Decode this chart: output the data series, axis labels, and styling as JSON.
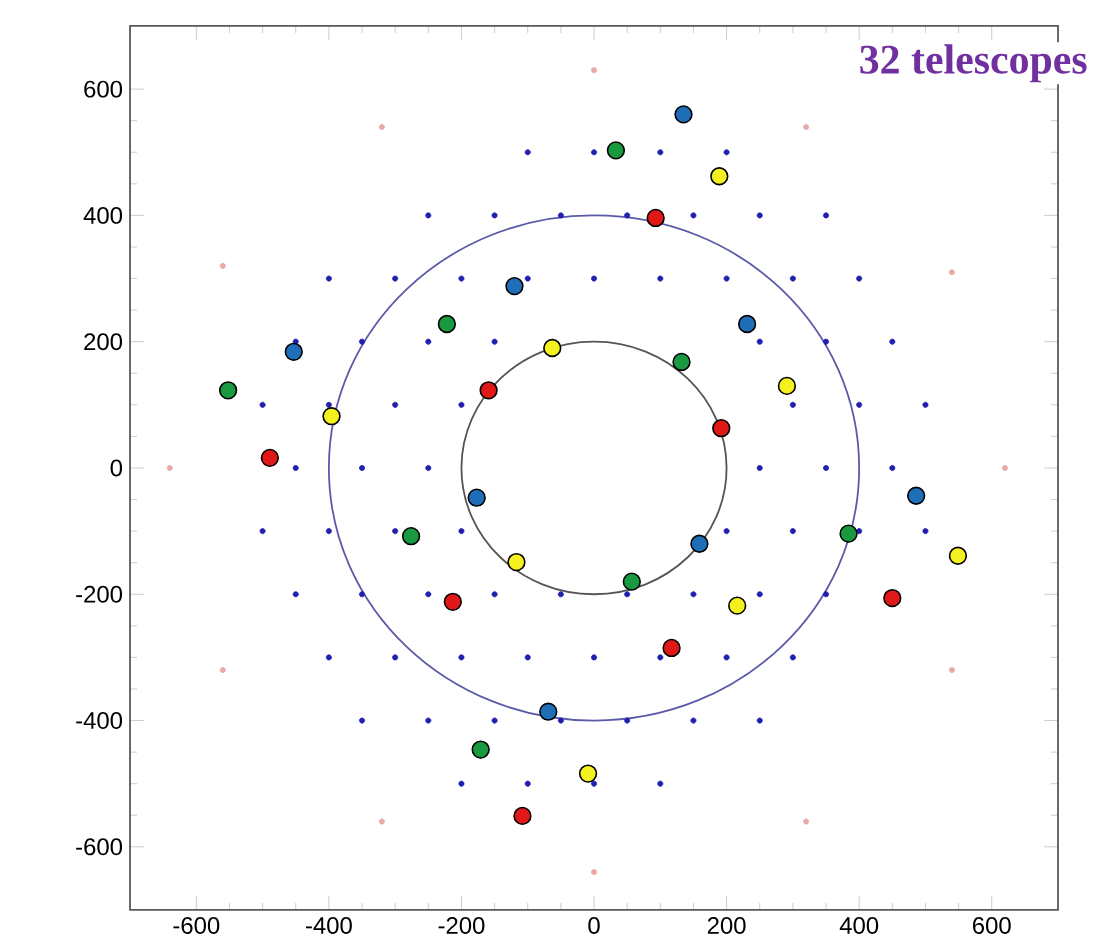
{
  "chart_data": {
    "type": "scatter",
    "title": "32 telescopes",
    "xlim": [
      -700,
      700
    ],
    "ylim": [
      -700,
      700
    ],
    "xticks": [
      -600,
      -400,
      -200,
      0,
      200,
      400,
      600
    ],
    "yticks": [
      -600,
      -400,
      -200,
      0,
      200,
      400,
      600
    ],
    "series": [
      {
        "color": "#2020b0",
        "x": [
          -100,
          0,
          100,
          200,
          -250,
          -150,
          -50,
          50,
          150,
          250,
          350,
          -400,
          -300,
          -200,
          -100,
          0,
          100,
          200,
          300,
          400,
          -450,
          -350,
          -250,
          -150,
          250,
          350,
          450,
          -500,
          -400,
          -300,
          -200,
          300,
          400,
          500,
          -450,
          -350,
          -250,
          250,
          350,
          450,
          -500,
          -400,
          -300,
          -200,
          200,
          300,
          400,
          500,
          -450,
          -350,
          -250,
          -150,
          -50,
          50,
          150,
          250,
          350,
          -400,
          -300,
          -200,
          -100,
          0,
          100,
          200,
          300,
          -350,
          -250,
          -150,
          -50,
          50,
          150,
          250,
          -200,
          -100,
          0,
          100
        ],
        "values": [
          500,
          500,
          500,
          500,
          400,
          400,
          400,
          400,
          400,
          400,
          400,
          300,
          300,
          300,
          300,
          300,
          300,
          300,
          300,
          300,
          200,
          200,
          200,
          200,
          200,
          200,
          200,
          100,
          100,
          100,
          100,
          100,
          100,
          100,
          0,
          0,
          0,
          0,
          0,
          0,
          -100,
          -100,
          -100,
          -100,
          -100,
          -100,
          -100,
          -100,
          -200,
          -200,
          -200,
          -200,
          -200,
          -200,
          -200,
          -200,
          -200,
          -300,
          -300,
          -300,
          -300,
          -300,
          -300,
          -300,
          -300,
          -400,
          -400,
          -400,
          -400,
          -400,
          -400,
          -400,
          -500,
          -500,
          -500,
          -500
        ]
      },
      {
        "color": "#e8a8a8",
        "x": [
          620,
          540,
          320,
          0,
          -320,
          -560,
          -640,
          -560,
          -320,
          0,
          320,
          540
        ],
        "values": [
          0,
          310,
          540,
          630,
          540,
          320,
          0,
          -320,
          -560,
          -640,
          -560,
          -320
        ]
      },
      {
        "color": "#1a9a40",
        "x": [
          33,
          -222,
          -552,
          132,
          -276,
          57,
          384,
          -171
        ],
        "values": [
          503,
          228,
          123,
          168,
          -108,
          -180,
          -104,
          -446
        ]
      },
      {
        "color": "#1f6fb8",
        "x": [
          135,
          -120,
          -453,
          231,
          -177,
          159,
          486,
          -69
        ],
        "values": [
          560,
          288,
          184,
          228,
          -47,
          -120,
          -44,
          -386
        ]
      },
      {
        "color": "#e01818",
        "x": [
          93,
          -159,
          192,
          -489,
          -213,
          117,
          450,
          -108
        ],
        "values": [
          396,
          123,
          63,
          16,
          -212,
          -285,
          -206,
          -551
        ]
      },
      {
        "color": "#f5f020",
        "x": [
          189,
          -63,
          -396,
          291,
          -117,
          216,
          549,
          -9
        ],
        "values": [
          462,
          190,
          82,
          130,
          -149,
          -218,
          -139,
          -484
        ]
      }
    ]
  }
}
